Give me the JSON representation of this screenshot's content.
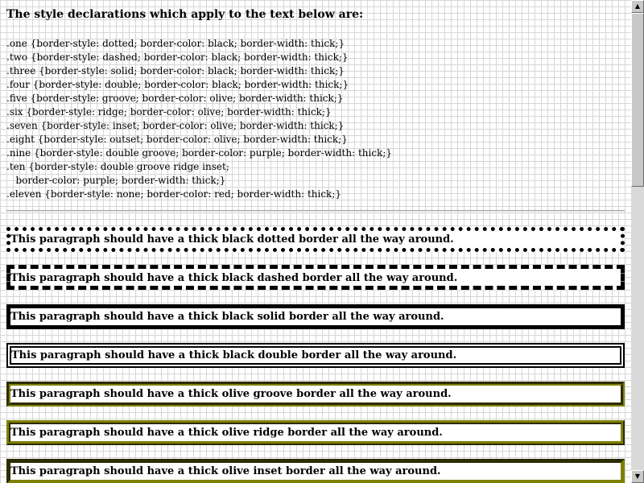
{
  "heading": "The style declarations which apply to the text below are:",
  "style_rules": [
    ".one {border-style: dotted; border-color: black; border-width: thick;}",
    ".two {border-style: dashed; border-color: black; border-width: thick;}",
    ".three {border-style: solid; border-color: black; border-width: thick;}",
    ".four {border-style: double; border-color: black; border-width: thick;}",
    ".five {border-style: groove; border-color: olive; border-width: thick;}",
    ".six {border-style: ridge; border-color: olive; border-width: thick;}",
    ".seven {border-style: inset; border-color: olive; border-width: thick;}",
    ".eight {border-style: outset; border-color: olive; border-width: thick;}",
    ".nine {border-style: double groove; border-color: purple; border-width: thick;}",
    ".ten {border-style: double groove ridge inset;",
    "   border-color: purple; border-width: thick;}",
    ".eleven {border-style: none; border-color: red; border-width: thick;}"
  ],
  "paragraphs": [
    "This paragraph should have a thick black dotted border all the way around.",
    "This paragraph should have a thick black dashed border all the way around.",
    "This paragraph should have a thick black solid border all the way around.",
    "This paragraph should have a thick black double border all the way around.",
    "This paragraph should have a thick olive groove border all the way around.",
    "This paragraph should have a thick olive ridge border all the way around.",
    "This paragraph should have a thick olive inset border all the way around."
  ],
  "colors": {
    "black": "#000000",
    "olive": "#808000",
    "grid": "#d6d6d6"
  },
  "scrollbar": {
    "up_icon": "arrow-up-icon",
    "down_icon": "arrow-down-icon",
    "up_glyph": "▲",
    "down_glyph": "▼"
  }
}
